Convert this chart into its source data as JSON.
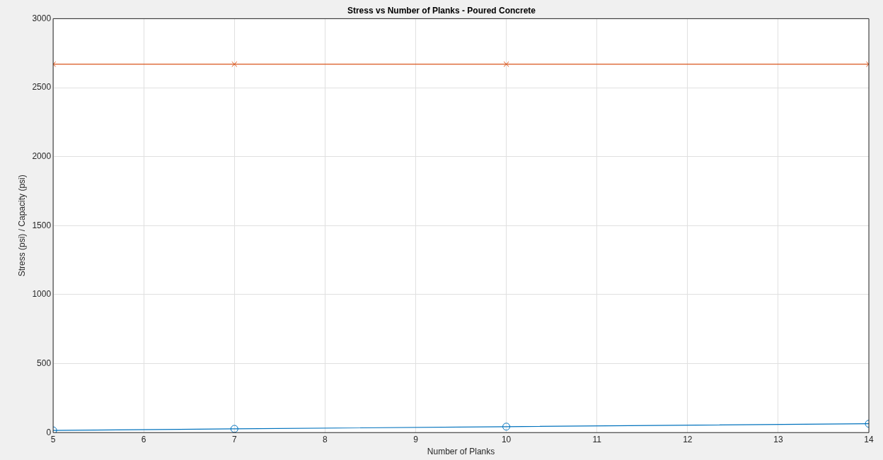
{
  "chart_data": {
    "type": "line",
    "title": "Stress vs Number of Planks - Poured Concrete",
    "xlabel": "Number of Planks",
    "ylabel": "Stress (psi) / Capacity (psi)",
    "x": [
      5,
      7,
      10,
      14
    ],
    "series": [
      {
        "color": "#0072bd",
        "values": [
          16,
          27,
          43,
          64
        ],
        "marker": "circle"
      },
      {
        "color": "#d95319",
        "values": [
          2670,
          2670,
          2670,
          2670
        ],
        "marker": "cross"
      }
    ],
    "xlim": [
      5,
      14
    ],
    "xticks": [
      5,
      6,
      7,
      8,
      9,
      10,
      11,
      12,
      13,
      14
    ],
    "ylim": [
      0,
      3000
    ],
    "yticks": [
      0,
      500,
      1000,
      1500,
      2000,
      2500,
      3000
    ],
    "grid": true,
    "legend": false,
    "line_style": "solid"
  }
}
